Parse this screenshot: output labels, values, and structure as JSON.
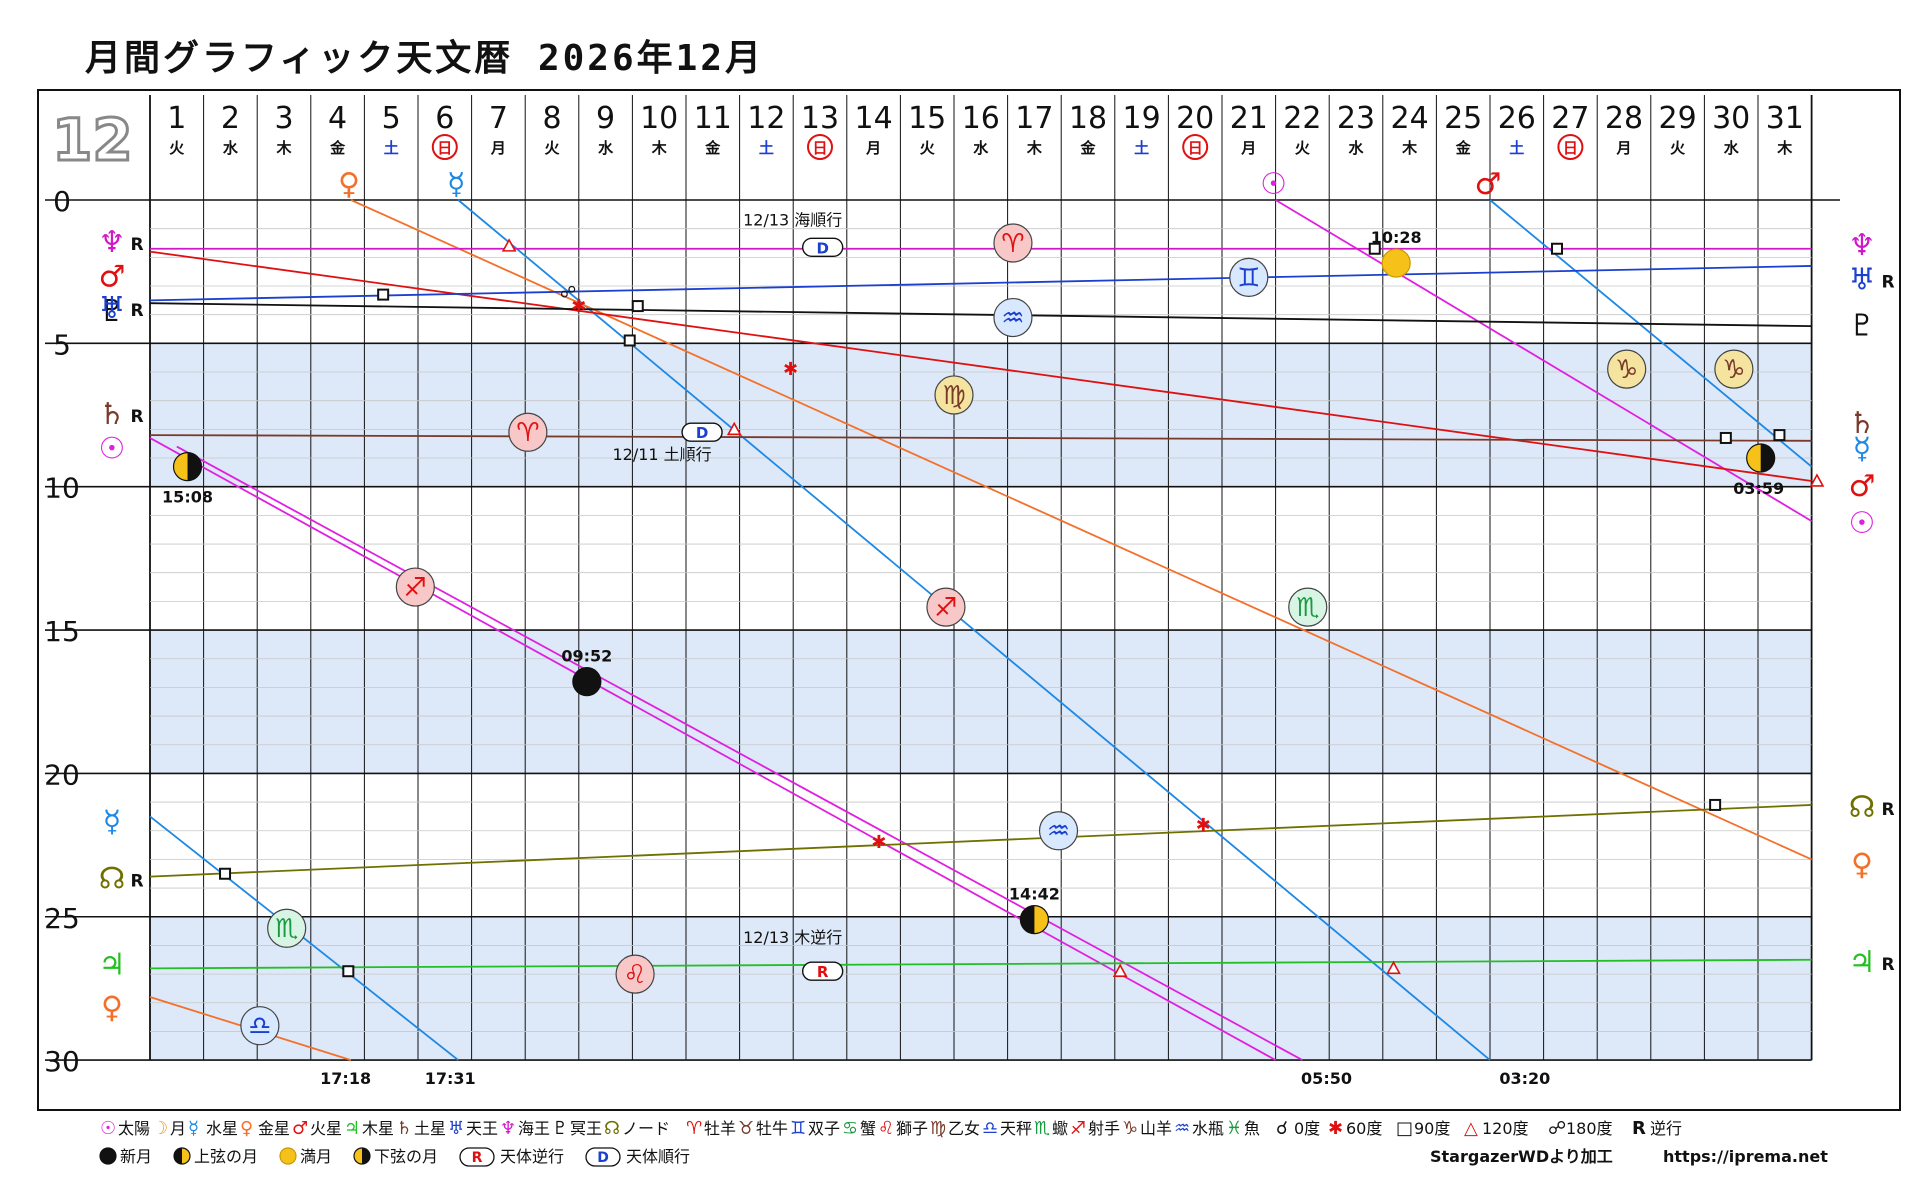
{
  "header": {
    "title": "月間グラフィック天文暦 2026年12月",
    "month_number": "12"
  },
  "chart_data": {
    "type": "line",
    "title": "月間グラフィック天文暦 2026年12月",
    "x_axis": {
      "label": "",
      "days": [
        1,
        2,
        3,
        4,
        5,
        6,
        7,
        8,
        9,
        10,
        11,
        12,
        13,
        14,
        15,
        16,
        17,
        18,
        19,
        20,
        21,
        22,
        23,
        24,
        25,
        26,
        27,
        28,
        29,
        30,
        31
      ],
      "weekdays": [
        "火",
        "水",
        "木",
        "金",
        "土",
        "日",
        "月",
        "火",
        "水",
        "木",
        "金",
        "土",
        "日",
        "月",
        "火",
        "水",
        "木",
        "金",
        "土",
        "日",
        "月",
        "火",
        "水",
        "木",
        "金",
        "土",
        "日",
        "月",
        "火",
        "水",
        "木"
      ],
      "range": [
        0,
        31
      ]
    },
    "y_axis": {
      "label": "",
      "ticks": [
        0,
        5,
        10,
        15,
        20,
        25,
        30
      ],
      "range": [
        0,
        30
      ],
      "unit": "degree within sign",
      "inverted": true
    },
    "series": [
      {
        "name": "太陽",
        "color": "#e020e0",
        "start_glyph": "☉",
        "end_glyph": "☉",
        "segments": [
          {
            "points": [
              [
                0,
                8.3
              ],
              [
                21,
                30
              ]
            ]
          },
          {
            "points": [
              [
                21,
                0
              ],
              [
                31,
                11.2
              ]
            ]
          }
        ]
      },
      {
        "name": "月",
        "color": "#e020e0",
        "segments": [
          {
            "points": [
              [
                0.5,
                8.6
              ],
              [
                21.5,
                30
              ]
            ]
          }
        ]
      },
      {
        "name": "水星",
        "color": "#1e88e5",
        "start_glyph": "☿",
        "end_glyph": "☿",
        "retro_start": false,
        "segments": [
          {
            "points": [
              [
                0,
                21.5
              ],
              [
                5.75,
                30
              ]
            ]
          },
          {
            "points": [
              [
                5.75,
                0
              ],
              [
                25,
                30
              ]
            ]
          }
        ]
      },
      {
        "name": "金星",
        "color": "#f4702a",
        "start_glyph": "♀",
        "end_glyph": "♀",
        "segments": [
          {
            "points": [
              [
                0,
                27.8
              ],
              [
                3.75,
                30
              ]
            ]
          },
          {
            "points": [
              [
                3.75,
                0
              ],
              [
                31,
                23
              ]
            ]
          }
        ]
      },
      {
        "name": "火星",
        "color": "#e01010",
        "start_glyph": "♂",
        "end_glyph": "♂",
        "segments": [
          {
            "points": [
              [
                0,
                1.8
              ],
              [
                31,
                9.8
              ]
            ]
          }
        ]
      },
      {
        "name": "火星(次サイン)",
        "color": "#1e88e5",
        "segments": [
          {
            "points": [
              [
                25,
                0
              ],
              [
                31,
                9.3
              ]
            ]
          }
        ]
      },
      {
        "name": "木星",
        "color": "#22c022",
        "start_glyph": "♃",
        "end_glyph": "♃",
        "segments": [
          {
            "points": [
              [
                0,
                26.8
              ],
              [
                31,
                26.5
              ]
            ]
          }
        ]
      },
      {
        "name": "土星",
        "color": "#7a3a2a",
        "start_glyph": "♄",
        "end_glyph": "♄",
        "segments": [
          {
            "points": [
              [
                0,
                8.2
              ],
              [
                31,
                8.4
              ]
            ]
          }
        ]
      },
      {
        "name": "天王星",
        "color": "#1b3fcf",
        "start_glyph": "♅",
        "end_glyph": "♅",
        "segments": [
          {
            "points": [
              [
                0,
                3.5
              ],
              [
                31,
                2.3
              ]
            ]
          }
        ]
      },
      {
        "name": "海王星",
        "color": "#d018c8",
        "start_glyph": "♆",
        "end_glyph": "♆",
        "segments": [
          {
            "points": [
              [
                0,
                1.7
              ],
              [
                31,
                1.7
              ]
            ]
          }
        ]
      },
      {
        "name": "冥王星",
        "color": "#111111",
        "start_glyph": "♇",
        "end_glyph": "♇",
        "segments": [
          {
            "points": [
              [
                0,
                3.6
              ],
              [
                31,
                4.4
              ]
            ]
          }
        ]
      },
      {
        "name": "ノード",
        "color": "#707000",
        "start_glyph": "☊",
        "end_glyph": "☊",
        "segments": [
          {
            "points": [
              [
                0,
                23.6
              ],
              [
                31,
                21.1
              ]
            ]
          }
        ]
      }
    ],
    "left_labels": [
      {
        "glyph": "♆",
        "retro": "R",
        "y": 1.4,
        "color": "#d018c8"
      },
      {
        "glyph": "♂",
        "retro": "",
        "y": 2.6,
        "color": "#e01010"
      },
      {
        "glyph": "♇",
        "retro": "",
        "y": 3.8,
        "color": "#111111"
      },
      {
        "glyph": "♅",
        "retro": "R",
        "y": 3.7,
        "color": "#1b3fcf"
      },
      {
        "glyph": "♄",
        "retro": "R",
        "y": 7.4,
        "color": "#7a3a2a"
      },
      {
        "glyph": "☉",
        "retro": "",
        "y": 8.6,
        "color": "#e020e0"
      },
      {
        "glyph": "☿",
        "retro": "",
        "y": 21.6,
        "color": "#1e88e5"
      },
      {
        "glyph": "☊",
        "retro": "R",
        "y": 23.6,
        "color": "#707000"
      },
      {
        "glyph": "♃",
        "retro": "",
        "y": 26.6,
        "color": "#22c022"
      },
      {
        "glyph": "♀",
        "retro": "",
        "y": 28.1,
        "color": "#f4702a"
      }
    ],
    "right_labels": [
      {
        "glyph": "♆",
        "retro": "",
        "y": 1.5,
        "color": "#d018c8"
      },
      {
        "glyph": "♅",
        "retro": "R",
        "y": 2.7,
        "color": "#1b3fcf"
      },
      {
        "glyph": "♇",
        "retro": "",
        "y": 4.3,
        "color": "#111111"
      },
      {
        "glyph": "♄",
        "retro": "",
        "y": 7.7,
        "color": "#7a3a2a"
      },
      {
        "glyph": "☿",
        "retro": "",
        "y": 8.6,
        "color": "#1e88e5"
      },
      {
        "glyph": "♂",
        "retro": "",
        "y": 9.9,
        "color": "#e01010"
      },
      {
        "glyph": "☉",
        "retro": "",
        "y": 11.2,
        "color": "#e020e0"
      },
      {
        "glyph": "☊",
        "retro": "R",
        "y": 21.1,
        "color": "#707000"
      },
      {
        "glyph": "♀",
        "retro": "",
        "y": 23.1,
        "color": "#f4702a"
      },
      {
        "glyph": "♃",
        "retro": "R",
        "y": 26.5,
        "color": "#22c022"
      }
    ],
    "top_glyphs": [
      {
        "glyph": "♀",
        "day": 3.75,
        "color": "#f4702a"
      },
      {
        "glyph": "☿",
        "day": 5.75,
        "color": "#1e88e5"
      },
      {
        "glyph": "☉",
        "day": 21,
        "color": "#e020e0"
      },
      {
        "glyph": "♂",
        "day": 25,
        "color": "#e01010"
      }
    ],
    "sign_markers": [
      {
        "glyph": "♈",
        "day": 16.1,
        "y": 1.5,
        "fill": "#f8c8c8",
        "color": "#e01010"
      },
      {
        "glyph": "♊",
        "day": 20.5,
        "y": 2.7,
        "fill": "#d8e8ff",
        "color": "#1b3fcf"
      },
      {
        "glyph": "♒",
        "day": 16.1,
        "y": 4.1,
        "fill": "#d8e8ff",
        "color": "#1b3fcf"
      },
      {
        "glyph": "♍",
        "day": 15.0,
        "y": 6.8,
        "fill": "#f4e4a0",
        "color": "#7a3a2a"
      },
      {
        "glyph": "♈",
        "day": 7.05,
        "y": 8.1,
        "fill": "#f8c8c8",
        "color": "#e01010"
      },
      {
        "glyph": "♑",
        "day": 27.55,
        "y": 5.9,
        "fill": "#f4e4a0",
        "color": "#7a3a2a"
      },
      {
        "glyph": "♑",
        "day": 29.55,
        "y": 5.9,
        "fill": "#f4e4a0",
        "color": "#7a3a2a"
      },
      {
        "glyph": "♐",
        "day": 4.95,
        "y": 13.5,
        "fill": "#f8c8c8",
        "color": "#e01010"
      },
      {
        "glyph": "♐",
        "day": 14.85,
        "y": 14.2,
        "fill": "#f8c8c8",
        "color": "#e01010"
      },
      {
        "glyph": "♏",
        "day": 21.6,
        "y": 14.2,
        "fill": "#d8f4e4",
        "color": "#1a9a40"
      },
      {
        "glyph": "♒",
        "day": 16.95,
        "y": 22.0,
        "fill": "#d8e8ff",
        "color": "#1b3fcf"
      },
      {
        "glyph": "♏",
        "day": 2.55,
        "y": 25.4,
        "fill": "#d8f4e4",
        "color": "#1a9a40"
      },
      {
        "glyph": "♌",
        "day": 9.05,
        "y": 27.0,
        "fill": "#f8c8c8",
        "color": "#e01010"
      },
      {
        "glyph": "♎",
        "day": 2.05,
        "y": 28.8,
        "fill": "#d8e8ff",
        "color": "#1b3fcf"
      }
    ],
    "moon_phases": [
      {
        "type": "last_quarter",
        "day": 0.7,
        "y": 9.3,
        "time": "15:08",
        "label_pos": "below"
      },
      {
        "type": "new",
        "day": 8.15,
        "y": 16.8,
        "time": "09:52",
        "label_pos": "above"
      },
      {
        "type": "first_quarter",
        "day": 16.5,
        "y": 25.1,
        "time": "14:42",
        "label_pos": "above"
      },
      {
        "type": "full",
        "day": 23.25,
        "y": 2.2,
        "time": "10:28",
        "label_pos": "above"
      },
      {
        "type": "last_quarter",
        "day": 30.05,
        "y": 9.0,
        "time": "03:59",
        "label_pos": "below"
      }
    ],
    "station_badges": [
      {
        "letter": "D",
        "day": 12.55,
        "y": 1.65,
        "text": "12/13 海順行",
        "text_dx": -30,
        "text_dy": -22
      },
      {
        "letter": "D",
        "day": 10.3,
        "y": 8.1,
        "text": "12/11 土順行",
        "text_dx": -40,
        "text_dy": 28
      },
      {
        "letter": "R",
        "day": 12.55,
        "y": 26.9,
        "text": "12/13 木逆行",
        "text_dx": -30,
        "text_dy": -28
      }
    ],
    "aspects": [
      {
        "kind": "square",
        "day": 4.35,
        "y": 3.3
      },
      {
        "kind": "square",
        "day": 9.1,
        "y": 3.7
      },
      {
        "kind": "square",
        "day": 8.95,
        "y": 4.9
      },
      {
        "kind": "square",
        "day": 22.85,
        "y": 1.7
      },
      {
        "kind": "square",
        "day": 26.25,
        "y": 1.7
      },
      {
        "kind": "square",
        "day": 29.4,
        "y": 8.3
      },
      {
        "kind": "square",
        "day": 30.4,
        "y": 8.2
      },
      {
        "kind": "square",
        "day": 1.4,
        "y": 23.5
      },
      {
        "kind": "square",
        "day": 3.7,
        "y": 26.9
      },
      {
        "kind": "square",
        "day": 29.2,
        "y": 21.1
      },
      {
        "kind": "sextile",
        "day": 8.0,
        "y": 3.7
      },
      {
        "kind": "sextile",
        "day": 11.95,
        "y": 5.9
      },
      {
        "kind": "sextile",
        "day": 13.6,
        "y": 22.4
      },
      {
        "kind": "sextile",
        "day": 19.65,
        "y": 21.8
      },
      {
        "kind": "trine",
        "day": 6.7,
        "y": 1.6
      },
      {
        "kind": "trine",
        "day": 10.9,
        "y": 8.0
      },
      {
        "kind": "trine",
        "day": 18.1,
        "y": 26.9
      },
      {
        "kind": "trine",
        "day": 23.2,
        "y": 26.8
      },
      {
        "kind": "trine",
        "day": 31.1,
        "y": 9.8
      },
      {
        "kind": "opposition",
        "day": 7.8,
        "y": 3.2
      }
    ],
    "bottom_times": [
      {
        "day": 3.65,
        "time": "17:18"
      },
      {
        "day": 5.6,
        "time": "17:31"
      },
      {
        "day": 21.95,
        "time": "05:50"
      },
      {
        "day": 25.65,
        "time": "03:20"
      }
    ]
  },
  "legend": {
    "row1": [
      {
        "glyph": "☉",
        "label": "太陽",
        "color": "#e020e0"
      },
      {
        "glyph": "☽",
        "label": "月",
        "color": "#f4a000"
      },
      {
        "glyph": "☿",
        "label": "水星",
        "color": "#1e88e5"
      },
      {
        "glyph": "♀",
        "label": "金星",
        "color": "#f4702a"
      },
      {
        "glyph": "♂",
        "label": "火星",
        "color": "#e01010"
      },
      {
        "glyph": "♃",
        "label": "木星",
        "color": "#22c022"
      },
      {
        "glyph": "♄",
        "label": "土星",
        "color": "#7a3a2a"
      },
      {
        "glyph": "♅",
        "label": "天王",
        "color": "#1b3fcf"
      },
      {
        "glyph": "♆",
        "label": "海王",
        "color": "#d018c8"
      },
      {
        "glyph": "♇",
        "label": "冥王",
        "color": "#111111"
      },
      {
        "glyph": "☊",
        "label": "ノード",
        "color": "#707000"
      }
    ],
    "signs": [
      {
        "glyph": "♈",
        "label": "牡羊",
        "color": "#e01010"
      },
      {
        "glyph": "♉",
        "label": "牡牛",
        "color": "#7a3a2a"
      },
      {
        "glyph": "♊",
        "label": "双子",
        "color": "#1b3fcf"
      },
      {
        "glyph": "♋",
        "label": "蟹",
        "color": "#1a9a40"
      },
      {
        "glyph": "♌",
        "label": "獅子",
        "color": "#e01010"
      },
      {
        "glyph": "♍",
        "label": "乙女",
        "color": "#7a3a2a"
      },
      {
        "glyph": "♎",
        "label": "天秤",
        "color": "#1b3fcf"
      },
      {
        "glyph": "♏",
        "label": "蠍",
        "color": "#1a9a40"
      },
      {
        "glyph": "♐",
        "label": "射手",
        "color": "#e01010"
      },
      {
        "glyph": "♑",
        "label": "山羊",
        "color": "#7a3a2a"
      },
      {
        "glyph": "♒",
        "label": "水瓶",
        "color": "#1b3fcf"
      },
      {
        "glyph": "♓",
        "label": "魚",
        "color": "#1a9a40"
      }
    ],
    "aspects": [
      {
        "glyph": "☌",
        "label": "0度",
        "color": "#111111"
      },
      {
        "glyph": "✱",
        "label": "60度",
        "color": "#e01010"
      },
      {
        "glyph": "□",
        "label": "90度",
        "color": "#111111"
      },
      {
        "glyph": "△",
        "label": "120度",
        "color": "#e01010"
      },
      {
        "glyph": "☍",
        "label": "180度",
        "color": "#111111"
      },
      {
        "glyph": "R",
        "label": "逆行",
        "color": "#111111"
      }
    ],
    "row2": [
      {
        "kind": "new",
        "label": "新月"
      },
      {
        "kind": "first_quarter",
        "label": "上弦の月"
      },
      {
        "kind": "full",
        "label": "満月"
      },
      {
        "kind": "last_quarter",
        "label": "下弦の月"
      },
      {
        "kind": "badge_R",
        "letter": "R",
        "label": "天体逆行"
      },
      {
        "kind": "badge_D",
        "letter": "D",
        "label": "天体順行"
      }
    ],
    "credit": "StargazerWDより加工",
    "url": "https://iprema.net"
  }
}
